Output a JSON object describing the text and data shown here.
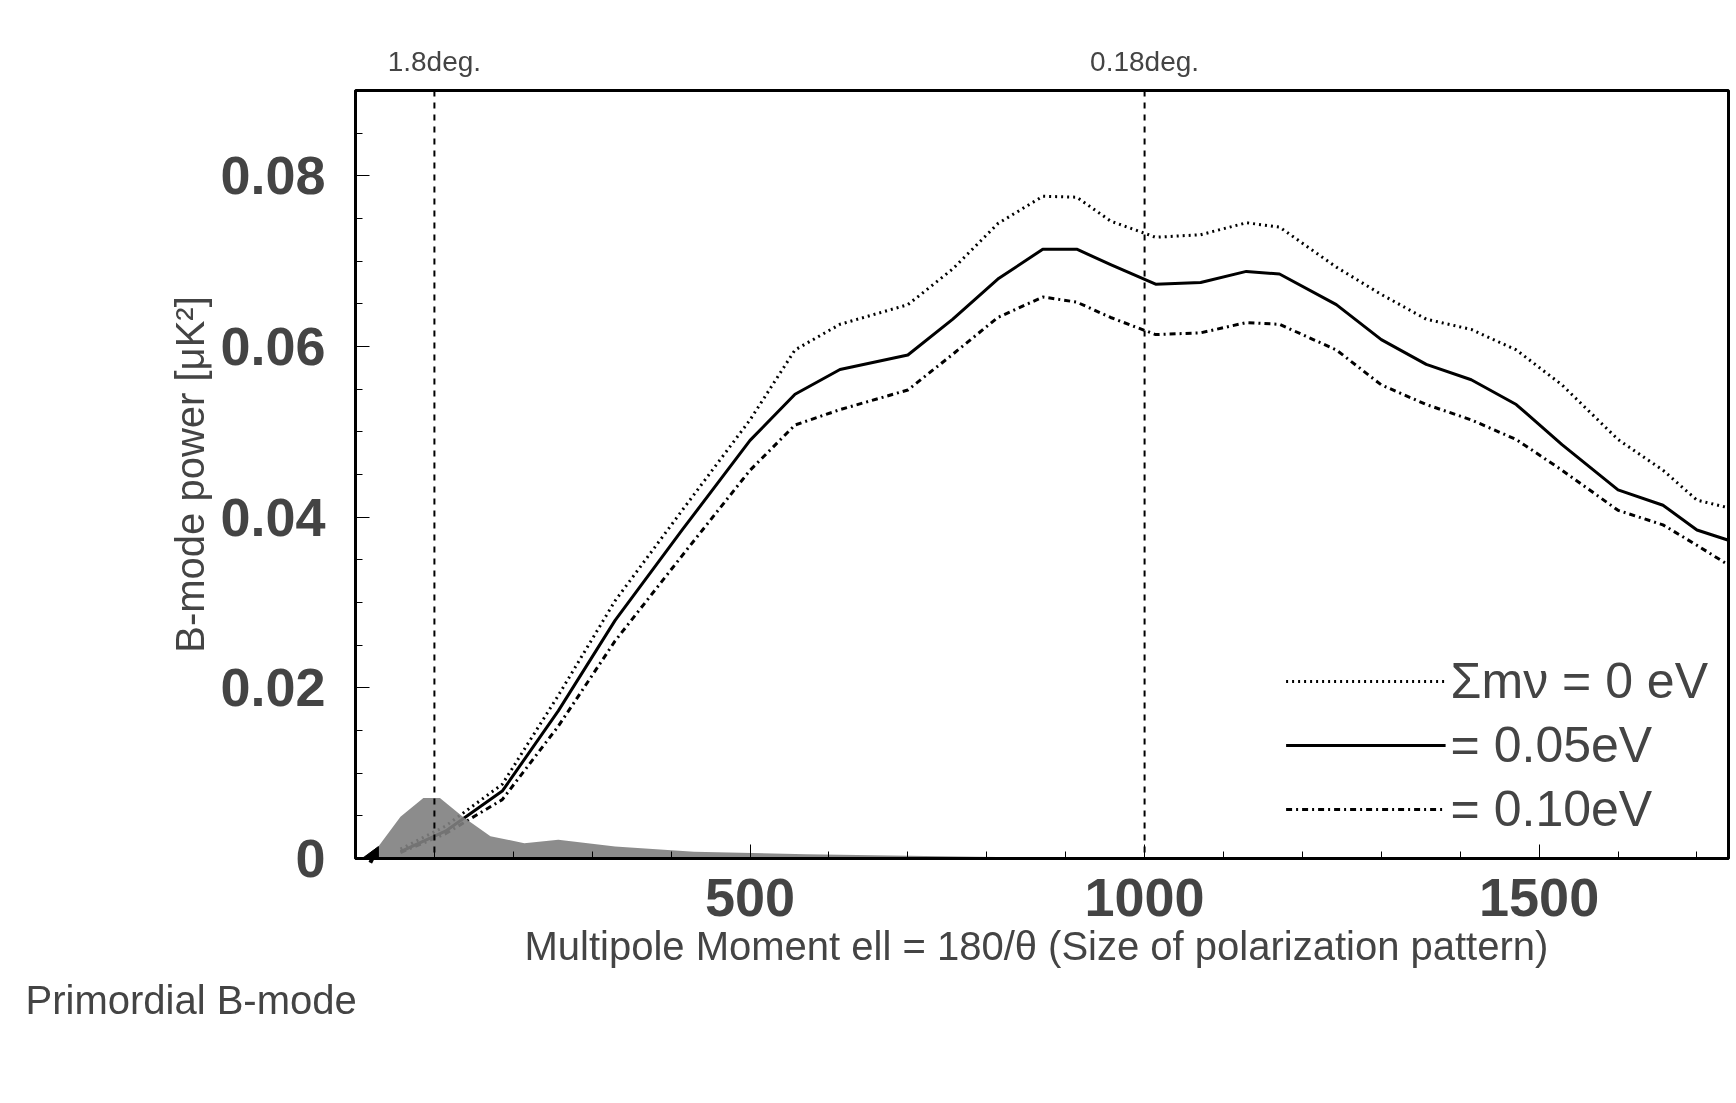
{
  "chart_data": {
    "type": "line",
    "xlabel": "Multipole Moment ell = 180/θ  (Size of polarization pattern)",
    "ylabel": "B-mode power [μK²]",
    "xlim": [
      0,
      1740
    ],
    "ylim": [
      0,
      0.09
    ],
    "xticks": [
      500,
      1000,
      1500
    ],
    "yticks": [
      0,
      0.02,
      0.04,
      0.06,
      0.08
    ],
    "grid": false,
    "legend": "bottom right",
    "marker": "none",
    "series": [
      {
        "name": "Σmν = 0 eV",
        "color": "#000000",
        "line_style": "dotted",
        "x": [
          57,
          114,
          186,
          257,
          329,
          414,
          500,
          557,
          614,
          700,
          757,
          814,
          871,
          914,
          957,
          1014,
          1071,
          1129,
          1171,
          1243,
          1300,
          1357,
          1414,
          1471,
          1529,
          1600,
          1657,
          1700,
          1740
        ],
        "values": [
          0.0011,
          0.0038,
          0.0087,
          0.0191,
          0.0302,
          0.0408,
          0.0514,
          0.0596,
          0.0626,
          0.0649,
          0.0691,
          0.0744,
          0.0776,
          0.0775,
          0.0747,
          0.0728,
          0.0731,
          0.0745,
          0.074,
          0.0693,
          0.0661,
          0.0632,
          0.062,
          0.0596,
          0.0555,
          0.0491,
          0.0455,
          0.042,
          0.0411
        ]
      },
      {
        "name": "= 0.05eV",
        "color": "#000000",
        "line_style": "solid",
        "x": [
          57,
          114,
          186,
          257,
          329,
          414,
          500,
          557,
          614,
          700,
          757,
          814,
          871,
          914,
          957,
          1014,
          1071,
          1129,
          1171,
          1243,
          1300,
          1357,
          1414,
          1471,
          1529,
          1600,
          1657,
          1700,
          1740
        ],
        "values": [
          0.0008,
          0.0032,
          0.0079,
          0.0173,
          0.0279,
          0.0385,
          0.049,
          0.0544,
          0.0573,
          0.059,
          0.0632,
          0.0679,
          0.0714,
          0.0714,
          0.0696,
          0.0673,
          0.0675,
          0.0688,
          0.0685,
          0.0649,
          0.0608,
          0.0579,
          0.0561,
          0.0532,
          0.0485,
          0.0432,
          0.0414,
          0.0385,
          0.0373
        ]
      },
      {
        "name": "= 0.10eV",
        "color": "#000000",
        "line_style": "dashdot",
        "x": [
          57,
          114,
          186,
          257,
          329,
          414,
          500,
          557,
          614,
          700,
          757,
          814,
          871,
          914,
          957,
          1014,
          1071,
          1129,
          1171,
          1243,
          1300,
          1357,
          1414,
          1471,
          1529,
          1600,
          1657,
          1700,
          1740
        ],
        "values": [
          0.0007,
          0.0029,
          0.0069,
          0.0155,
          0.0255,
          0.0355,
          0.0455,
          0.0508,
          0.0526,
          0.0549,
          0.0591,
          0.0634,
          0.0658,
          0.0652,
          0.0634,
          0.0614,
          0.0616,
          0.0628,
          0.0626,
          0.0596,
          0.0555,
          0.0532,
          0.0514,
          0.0491,
          0.0455,
          0.0408,
          0.0391,
          0.0367,
          0.0344
        ]
      },
      {
        "type": "area",
        "color": "#808080",
        "x": [
          7,
          29,
          57,
          86,
          107,
          136,
          171,
          214,
          257,
          329,
          429,
          571,
          786,
          1000
        ],
        "values": [
          0,
          0.0014,
          0.0049,
          0.0071,
          0.0071,
          0.0049,
          0.0026,
          0.0018,
          0.0022,
          0.0014,
          0.0008,
          0.0005,
          0.0002,
          0
        ]
      }
    ],
    "ref_lines": [
      {
        "axis": "x",
        "value": 100,
        "label": "1.8deg.",
        "line_style": "dashed"
      },
      {
        "axis": "x",
        "value": 1000,
        "label": "0.18deg.",
        "line_style": "dashed"
      }
    ],
    "annotations": [
      "Primordial B-mode"
    ]
  }
}
